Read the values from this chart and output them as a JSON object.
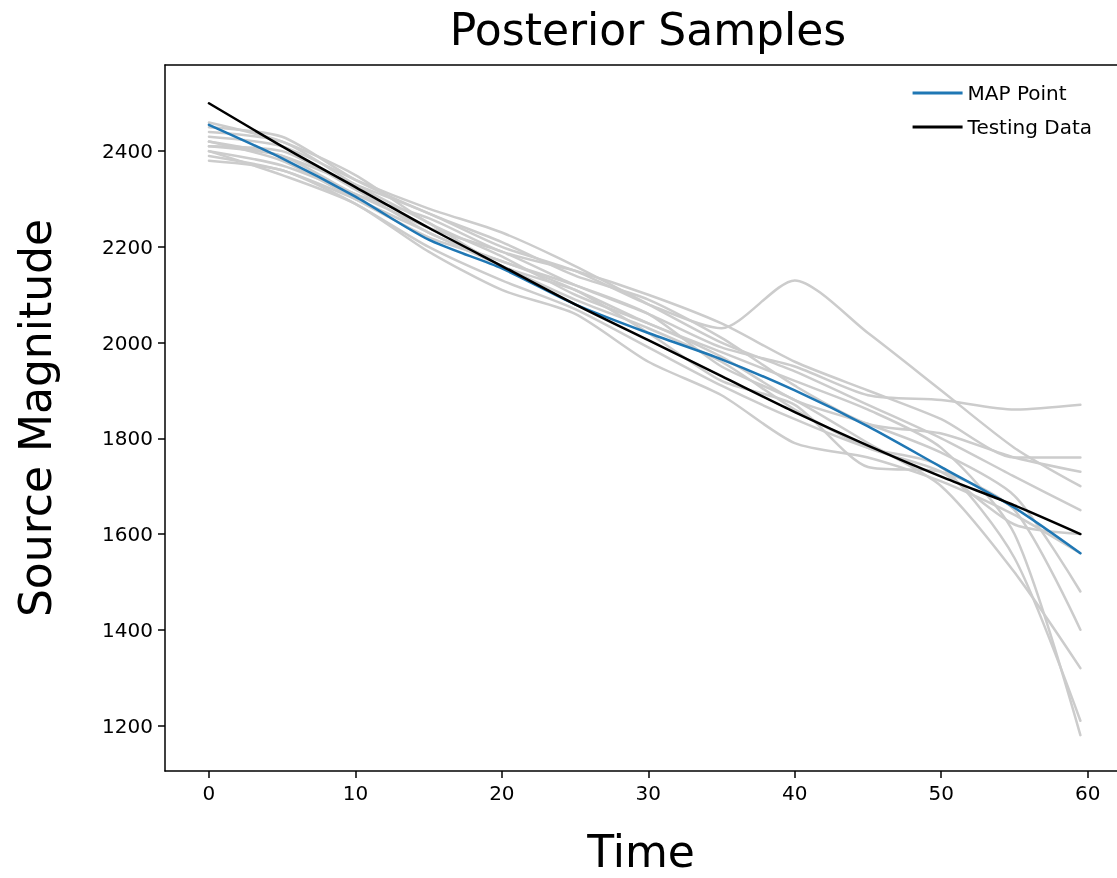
{
  "chart_data": {
    "type": "line",
    "title": "Posterior Samples",
    "xlabel": "Time",
    "ylabel": "Source Magnitude",
    "x": [
      0,
      5,
      10,
      15,
      20,
      25,
      30,
      35,
      40,
      45,
      50,
      55,
      59.5
    ],
    "xlim": [
      -3,
      62
    ],
    "xticks": [
      0,
      10,
      20,
      30,
      40,
      50,
      60
    ],
    "ylim": [
      1105,
      2580
    ],
    "yticks": [
      1200,
      1400,
      1600,
      1800,
      2000,
      2200,
      2400
    ],
    "grid": false,
    "legend": "top right",
    "marker": "none",
    "line_style": "solid",
    "series": [
      {
        "color": "#cccccc",
        "values": [
          2420,
          2390,
          2330,
          2270,
          2200,
          2150,
          2080,
          2030,
          2130,
          2020,
          1900,
          1780,
          1700
        ]
      },
      {
        "color": "#cccccc",
        "values": [
          2400,
          2370,
          2310,
          2240,
          2190,
          2120,
          2060,
          1990,
          1950,
          1890,
          1880,
          1860,
          1870
        ]
      },
      {
        "color": "#cccccc",
        "values": [
          2440,
          2420,
          2330,
          2250,
          2160,
          2110,
          2040,
          1980,
          1920,
          1860,
          1780,
          1600,
          1180
        ]
      },
      {
        "color": "#cccccc",
        "values": [
          2380,
          2360,
          2290,
          2200,
          2130,
          2070,
          1990,
          1910,
          1840,
          1780,
          1740,
          1550,
          1210
        ]
      },
      {
        "color": "#cccccc",
        "values": [
          2410,
          2400,
          2320,
          2230,
          2170,
          2120,
          2060,
          1950,
          1880,
          1790,
          1700,
          1520,
          1320
        ]
      },
      {
        "color": "#cccccc",
        "values": [
          2430,
          2410,
          2340,
          2280,
          2230,
          2160,
          2080,
          2000,
          1940,
          1870,
          1800,
          1720,
          1650
        ]
      },
      {
        "color": "#cccccc",
        "values": [
          2400,
          2350,
          2290,
          2190,
          2110,
          2060,
          1960,
          1890,
          1790,
          1760,
          1710,
          1640,
          1560
        ]
      },
      {
        "color": "#cccccc",
        "values": [
          2460,
          2420,
          2350,
          2250,
          2180,
          2100,
          2040,
          1970,
          1880,
          1830,
          1770,
          1680,
          1480
        ]
      },
      {
        "color": "#cccccc",
        "values": [
          2420,
          2380,
          2300,
          2220,
          2170,
          2110,
          2020,
          1920,
          1870,
          1740,
          1730,
          1650,
          1400
        ]
      },
      {
        "color": "#cccccc",
        "values": [
          2450,
          2430,
          2340,
          2270,
          2210,
          2140,
          2090,
          2010,
          1910,
          1830,
          1810,
          1760,
          1730
        ]
      },
      {
        "color": "#cccccc",
        "values": [
          2390,
          2360,
          2300,
          2230,
          2160,
          2090,
          2030,
          1960,
          1860,
          1780,
          1730,
          1620,
          1600
        ]
      },
      {
        "color": "#cccccc",
        "values": [
          2410,
          2390,
          2310,
          2260,
          2190,
          2150,
          2100,
          2040,
          1960,
          1900,
          1840,
          1760,
          1760
        ]
      },
      {
        "name": "MAP Point",
        "color": "#1f77b4",
        "values": [
          2455,
          2385,
          2305,
          2215,
          2155,
          2080,
          2020,
          1965,
          1900,
          1825,
          1740,
          1655,
          1560
        ]
      },
      {
        "name": "Testing Data",
        "color": "#000000",
        "values": [
          2500,
          2410,
          2325,
          2240,
          2160,
          2080,
          2005,
          1930,
          1855,
          1785,
          1720,
          1660,
          1600
        ]
      }
    ]
  }
}
